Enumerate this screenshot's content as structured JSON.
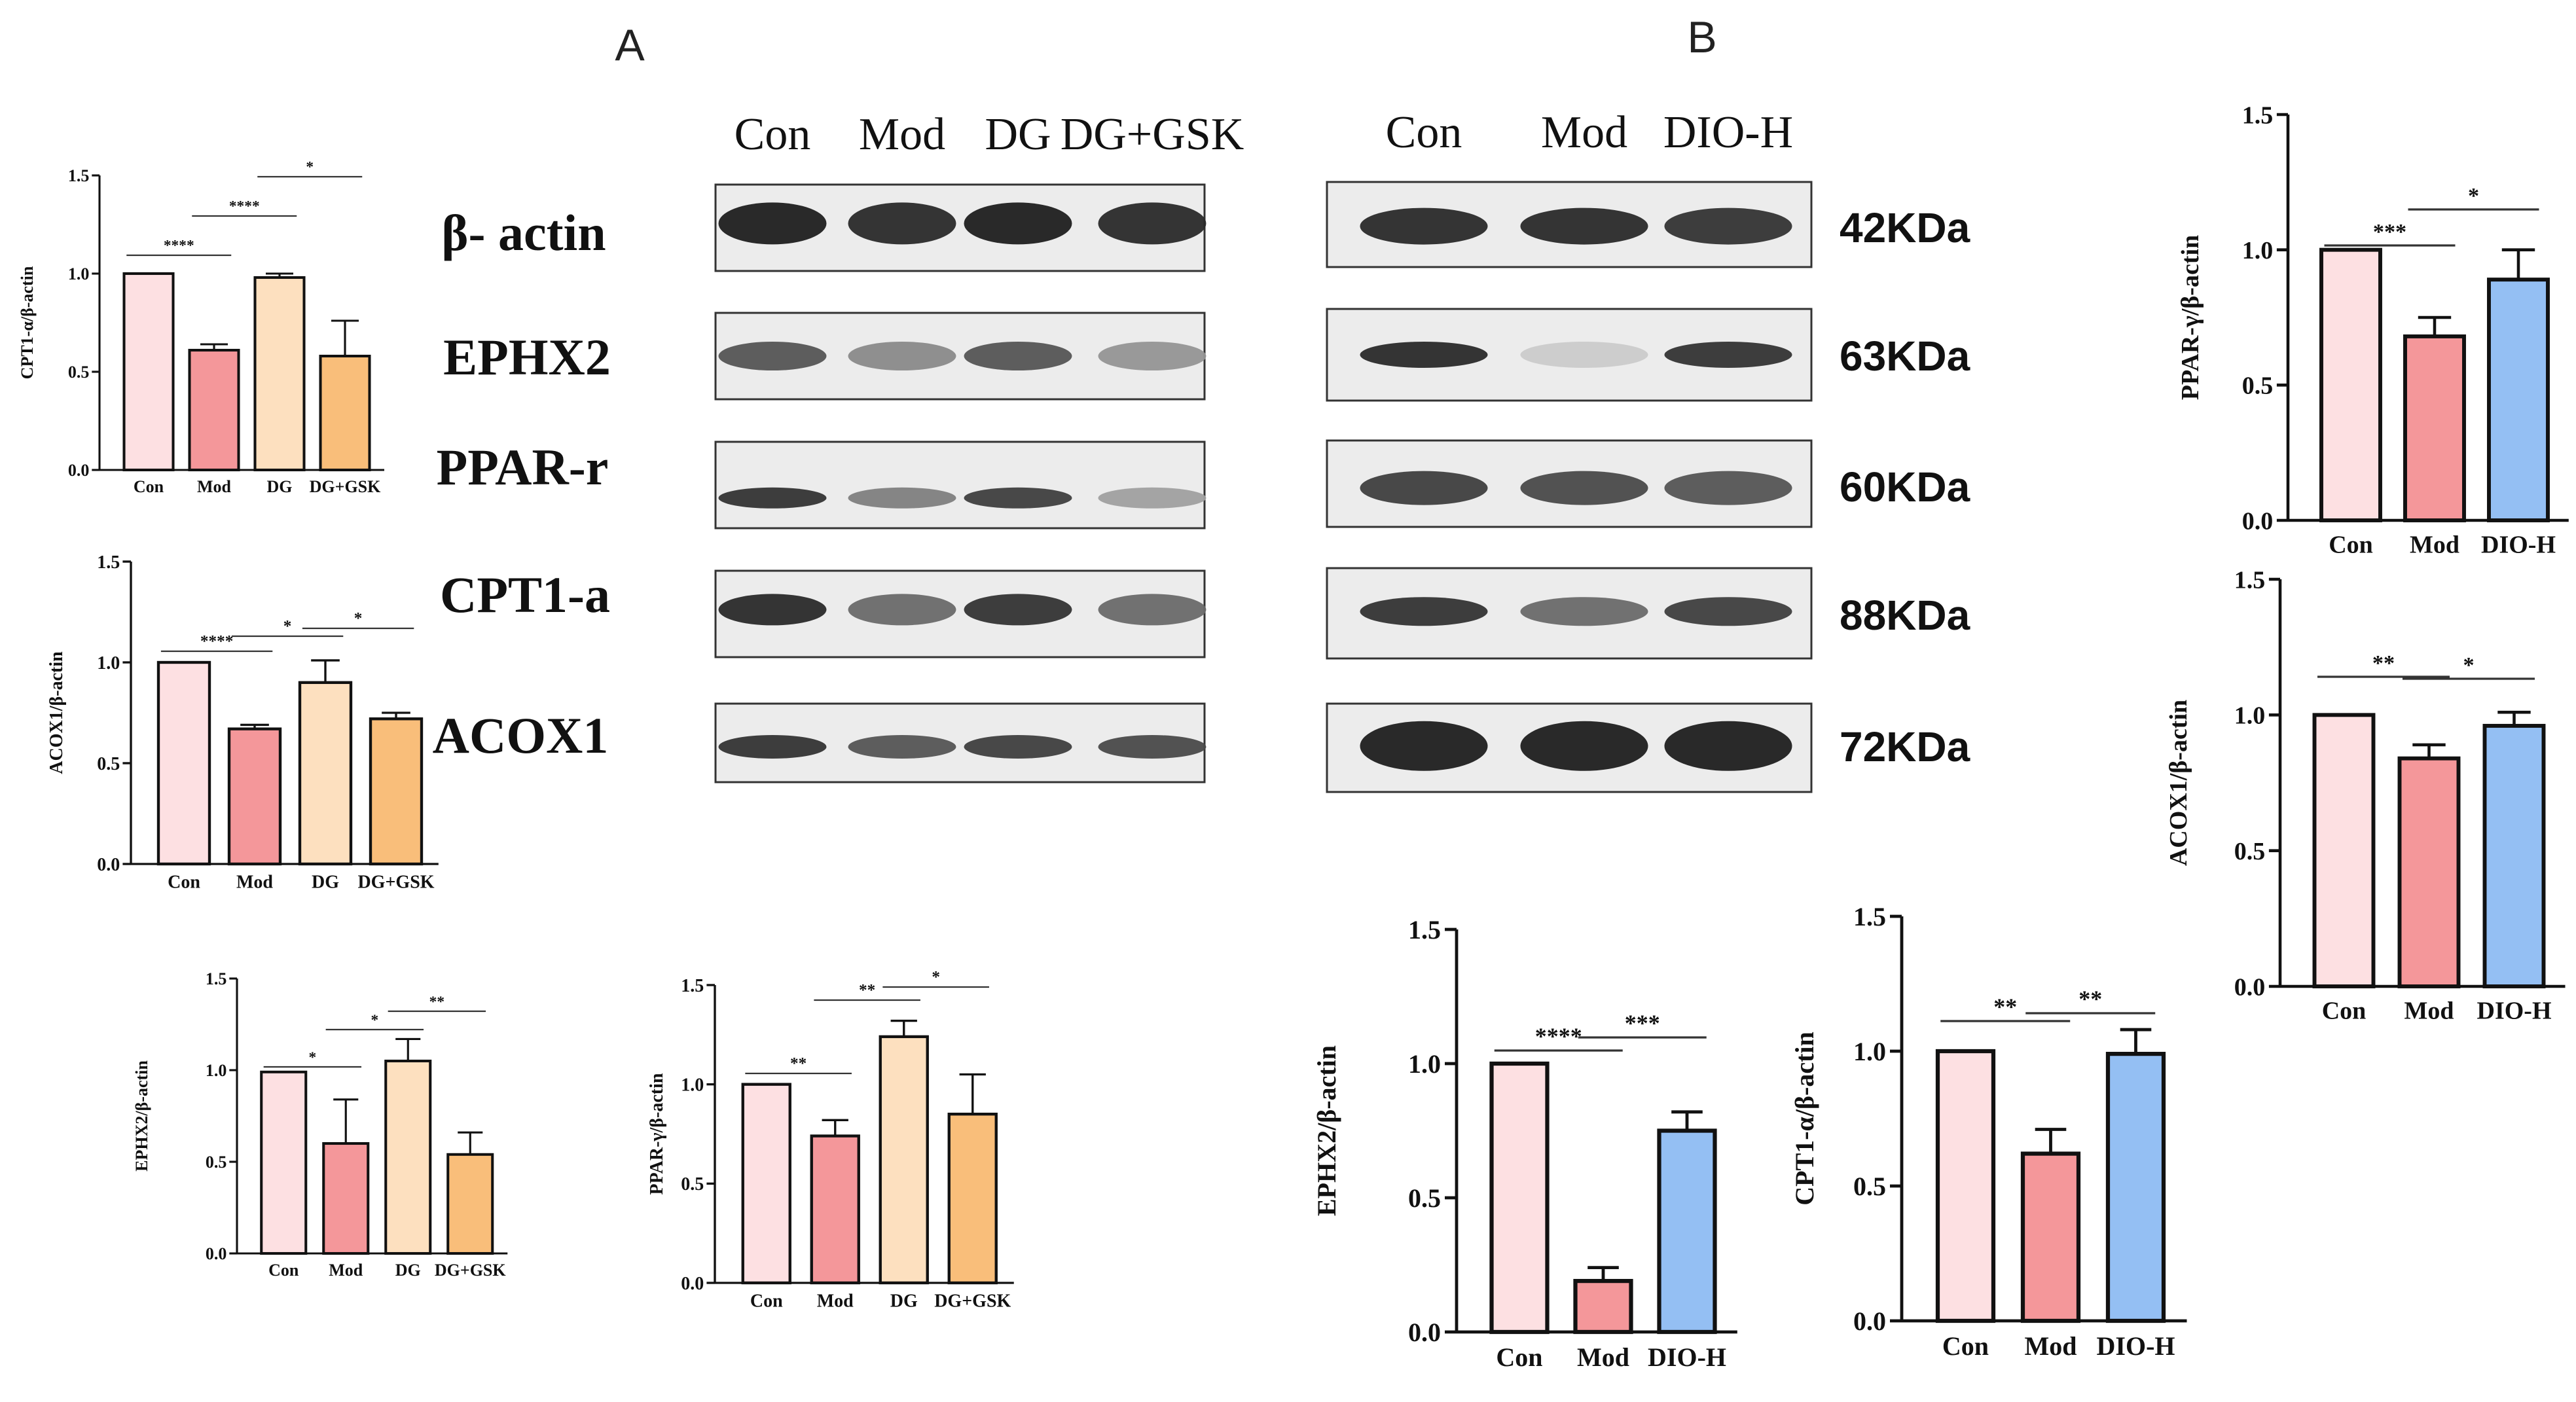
{
  "panels": {
    "a": "A",
    "b": "B"
  },
  "blot_a": {
    "lanes": [
      "Con",
      "Mod",
      "DG",
      "DG+GSK"
    ],
    "proteins": [
      "β- actin",
      "EPHX2",
      "PPAR-r",
      "CPT1-a",
      "ACOX1"
    ],
    "band_intensity": [
      [
        0.95,
        0.9,
        0.95,
        0.9
      ],
      [
        0.7,
        0.45,
        0.7,
        0.4
      ],
      [
        0.85,
        0.5,
        0.8,
        0.35
      ],
      [
        0.9,
        0.6,
        0.85,
        0.6
      ],
      [
        0.85,
        0.7,
        0.8,
        0.75
      ]
    ]
  },
  "blot_b": {
    "lanes": [
      "Con",
      "Mod",
      "DIO-H"
    ],
    "kda": [
      "42KDa",
      "63KDa",
      "60KDa",
      "88KDa",
      "72KDa"
    ],
    "band_intensity": [
      [
        0.9,
        0.9,
        0.85
      ],
      [
        0.9,
        0.15,
        0.85
      ],
      [
        0.8,
        0.75,
        0.7
      ],
      [
        0.85,
        0.6,
        0.8
      ],
      [
        0.95,
        0.95,
        0.95
      ]
    ]
  },
  "colors": {
    "con": "#fde0e2",
    "mod": "#f4979a",
    "dg": "#fde0bf",
    "dggsk": "#f9be7a",
    "dioh": "#94bff3"
  },
  "chart_data": [
    {
      "type": "bar",
      "categories": [
        "Con",
        "Mod",
        "DG",
        "DG+GSK"
      ],
      "values": [
        1.0,
        0.61,
        0.98,
        0.58
      ],
      "errors": [
        0,
        0.03,
        0.02,
        0.18
      ],
      "ylabel": "CPT1-α/β-actin",
      "ylim": [
        0,
        1.5
      ],
      "yticks": [
        "0.0",
        "0.5",
        "1.0",
        "1.5"
      ],
      "significance": [
        {
          "from": 0,
          "to": 1,
          "label": "****"
        },
        {
          "from": 1,
          "to": 2,
          "label": "****"
        },
        {
          "from": 2,
          "to": 3,
          "label": "*"
        }
      ]
    },
    {
      "type": "bar",
      "categories": [
        "Con",
        "Mod",
        "DG",
        "DG+GSK"
      ],
      "values": [
        1.0,
        0.67,
        0.9,
        0.72
      ],
      "errors": [
        0,
        0.02,
        0.11,
        0.03
      ],
      "ylabel": "ACOX1/β-actin",
      "ylim": [
        0,
        1.5
      ],
      "yticks": [
        "0.0",
        "0.5",
        "1.0",
        "1.5"
      ],
      "significance": [
        {
          "from": 0,
          "to": 1,
          "label": "****"
        },
        {
          "from": 1,
          "to": 2,
          "label": "*"
        },
        {
          "from": 2,
          "to": 3,
          "label": "*"
        }
      ]
    },
    {
      "type": "bar",
      "categories": [
        "Con",
        "Mod",
        "DG",
        "DG+GSK"
      ],
      "values": [
        0.99,
        0.6,
        1.05,
        0.54
      ],
      "errors": [
        0,
        0.24,
        0.12,
        0.12
      ],
      "ylabel": "EPHX2/β-actin",
      "ylim": [
        0,
        1.5
      ],
      "yticks": [
        "0.0",
        "0.5",
        "1.0",
        "1.5"
      ],
      "significance": [
        {
          "from": 0,
          "to": 1,
          "label": "*"
        },
        {
          "from": 1,
          "to": 2,
          "label": "*"
        },
        {
          "from": 2,
          "to": 3,
          "label": "**"
        }
      ]
    },
    {
      "type": "bar",
      "categories": [
        "Con",
        "Mod",
        "DG",
        "DG+GSK"
      ],
      "values": [
        1.0,
        0.74,
        1.24,
        0.85
      ],
      "errors": [
        0,
        0.08,
        0.08,
        0.2
      ],
      "ylabel": "PPAR-γ/β-actin",
      "ylim": [
        0,
        1.5
      ],
      "yticks": [
        "0.0",
        "0.5",
        "1.0",
        "1.5"
      ],
      "significance": [
        {
          "from": 0,
          "to": 1,
          "label": "**"
        },
        {
          "from": 1,
          "to": 2,
          "label": "**"
        },
        {
          "from": 2,
          "to": 3,
          "label": "*"
        }
      ]
    },
    {
      "type": "bar",
      "categories": [
        "Con",
        "Mod",
        "DIO-H"
      ],
      "values": [
        1.0,
        0.68,
        0.89
      ],
      "errors": [
        0,
        0.07,
        0.11
      ],
      "ylabel": "PPAR-γ/β-actin",
      "ylim": [
        0,
        1.5
      ],
      "yticks": [
        "0.0",
        "0.5",
        "1.0",
        "1.5"
      ],
      "significance": [
        {
          "from": 0,
          "to": 1,
          "label": "***"
        },
        {
          "from": 1,
          "to": 2,
          "label": "*"
        }
      ]
    },
    {
      "type": "bar",
      "categories": [
        "Con",
        "Mod",
        "DIO-H"
      ],
      "values": [
        1.0,
        0.84,
        0.96
      ],
      "errors": [
        0,
        0.05,
        0.05
      ],
      "ylabel": "ACOX1/β-actin",
      "ylim": [
        0,
        1.5
      ],
      "yticks": [
        "0.0",
        "0.5",
        "1.0",
        "1.5"
      ],
      "significance": [
        {
          "from": 0,
          "to": 1,
          "label": "**"
        },
        {
          "from": 1,
          "to": 2,
          "label": "*"
        }
      ]
    },
    {
      "type": "bar",
      "categories": [
        "Con",
        "Mod",
        "DIO-H"
      ],
      "values": [
        1.0,
        0.19,
        0.75
      ],
      "errors": [
        0,
        0.05,
        0.07
      ],
      "ylabel": "EPHX2/β-actin",
      "ylim": [
        0,
        1.5
      ],
      "yticks": [
        "0.0",
        "0.5",
        "1.0",
        "1.5"
      ],
      "significance": [
        {
          "from": 0,
          "to": 1,
          "label": "****"
        },
        {
          "from": 1,
          "to": 2,
          "label": "***"
        }
      ]
    },
    {
      "type": "bar",
      "categories": [
        "Con",
        "Mod",
        "DIO-H"
      ],
      "values": [
        1.0,
        0.62,
        0.99
      ],
      "errors": [
        0,
        0.09,
        0.09
      ],
      "ylabel": "CPT1-α/β-actin",
      "ylim": [
        0,
        1.5
      ],
      "yticks": [
        "0.0",
        "0.5",
        "1.0",
        "1.5"
      ],
      "significance": [
        {
          "from": 0,
          "to": 1,
          "label": "**"
        },
        {
          "from": 1,
          "to": 2,
          "label": "**"
        }
      ]
    }
  ]
}
